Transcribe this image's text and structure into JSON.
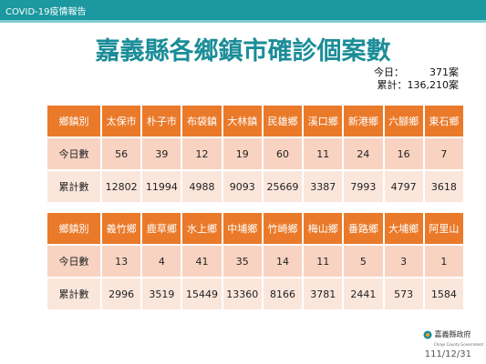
{
  "header": {
    "label": "COVID-19疫情報告"
  },
  "title": "嘉義縣各鄉鎮市確診個案數",
  "summary": {
    "today_label": "今日：",
    "today_value": "371案",
    "total_label": "累計：",
    "total_value": "136,210案"
  },
  "tables": [
    {
      "header": "鄉鎮別",
      "towns": [
        "太保市",
        "朴子市",
        "布袋鎮",
        "大林鎮",
        "民雄鄉",
        "溪口鄉",
        "新港鄉",
        "六腳鄉",
        "東石鄉"
      ],
      "rows": [
        {
          "label": "今日數",
          "values": [
            "56",
            "39",
            "12",
            "19",
            "60",
            "11",
            "24",
            "16",
            "7"
          ]
        },
        {
          "label": "累計數",
          "values": [
            "12802",
            "11994",
            "4988",
            "9093",
            "25669",
            "3387",
            "7993",
            "4797",
            "3618"
          ]
        }
      ]
    },
    {
      "header": "鄉鎮別",
      "towns": [
        "義竹鄉",
        "鹿草鄉",
        "水上鄉",
        "中埔鄉",
        "竹崎鄉",
        "梅山鄉",
        "番路鄉",
        "大埔鄉",
        "阿里山"
      ],
      "rows": [
        {
          "label": "今日數",
          "values": [
            "13",
            "4",
            "41",
            "35",
            "14",
            "11",
            "5",
            "3",
            "1"
          ]
        },
        {
          "label": "累計數",
          "values": [
            "2996",
            "3519",
            "15449",
            "13360",
            "8166",
            "3781",
            "2441",
            "573",
            "1584"
          ]
        }
      ]
    }
  ],
  "footer": {
    "org": "嘉義縣政府",
    "org_en": "Chiayi County Government",
    "date": "111/12/31"
  }
}
